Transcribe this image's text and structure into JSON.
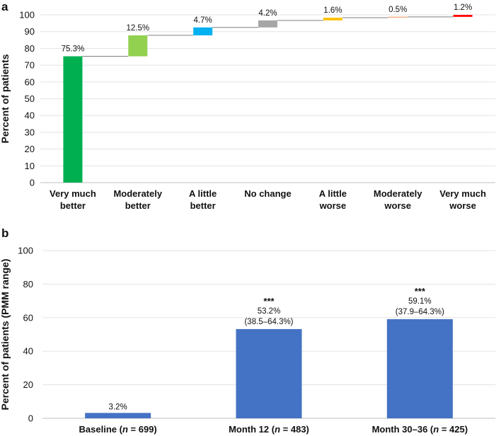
{
  "chart_data": [
    {
      "panel": "a",
      "type": "bar",
      "subtype": "waterfall",
      "ylabel": "Percent of patients",
      "ylim": [
        0,
        100
      ],
      "yticks": [
        0,
        10,
        20,
        30,
        40,
        50,
        60,
        70,
        80,
        90,
        100
      ],
      "grid": true,
      "categories": [
        [
          "Very much",
          "better"
        ],
        [
          "Moderately",
          "better"
        ],
        [
          "A little",
          "better"
        ],
        [
          "No change"
        ],
        [
          "A little",
          "worse"
        ],
        [
          "Moderately",
          "worse"
        ],
        [
          "Very much",
          "worse"
        ]
      ],
      "values": [
        75.3,
        12.5,
        4.7,
        4.2,
        1.6,
        0.5,
        1.2
      ],
      "value_labels": [
        "75.3%",
        "12.5%",
        "4.7%",
        "4.2%",
        "1.6%",
        "0.5%",
        "1.2%"
      ],
      "colors": [
        "#00b050",
        "#92d050",
        "#00b0f0",
        "#a6a6a6",
        "#ffc000",
        "#f4b183",
        "#ff0000"
      ]
    },
    {
      "panel": "b",
      "type": "bar",
      "ylabel": "Percent of patients (PMM range)",
      "ylim": [
        0,
        100
      ],
      "yticks": [
        0,
        20,
        40,
        60,
        80,
        100
      ],
      "grid": true,
      "categories": [
        {
          "name": "Baseline",
          "n": "699"
        },
        {
          "name": "Month 12",
          "n": "483"
        },
        {
          "name": "Month 30–36",
          "n": "425"
        }
      ],
      "values": [
        3.2,
        53.2,
        59.1
      ],
      "value_labels": [
        "3.2%",
        "53.2%",
        "59.1%"
      ],
      "ranges": [
        "",
        "(38.5–64.3%)",
        "(37.9–64.3%)"
      ],
      "significance": [
        "",
        "***",
        "***"
      ],
      "color": "#4472c4"
    }
  ]
}
